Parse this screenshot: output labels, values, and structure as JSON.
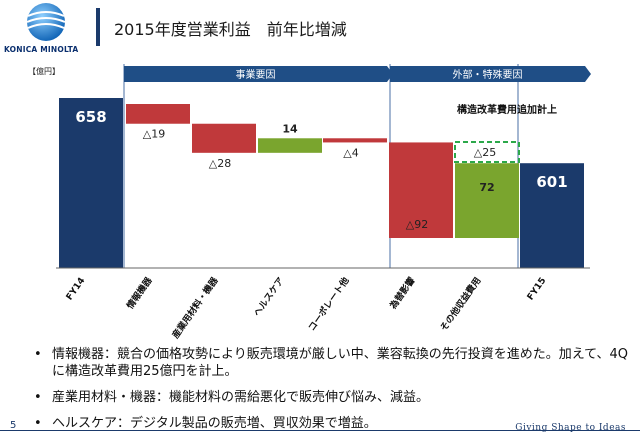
{
  "brand": {
    "name": "KONICA MINOLTA",
    "tagline": "Giving Shape to Ideas"
  },
  "header": {
    "title": "2015年度営業利益　前年比増減"
  },
  "footer": {
    "page_number": "5"
  },
  "colors": {
    "navy": "#1b3a6b",
    "red": "#c0393b",
    "green": "#7aa52e",
    "band": "#1f4e86",
    "dashed": "#2ca84a"
  },
  "chart_data": {
    "type": "bar",
    "unit": "【億円】",
    "categories": [
      "FY14",
      "情報機器",
      "産業用材料・機器",
      "ヘルスケア",
      "コーポレート他",
      "為替影響",
      "その他収益費用",
      "FY15"
    ],
    "bars": [
      {
        "kind": "total",
        "start": 0,
        "end": 658,
        "label": "658",
        "color": "navy"
      },
      {
        "kind": "decrease",
        "start": 658,
        "end": 639,
        "label": "△19",
        "color": "red"
      },
      {
        "kind": "decrease",
        "start": 639,
        "end": 611,
        "label": "△28",
        "color": "red"
      },
      {
        "kind": "increase",
        "start": 611,
        "end": 625,
        "label": "14",
        "color": "green"
      },
      {
        "kind": "decrease",
        "start": 625,
        "end": 621,
        "label": "△4",
        "color": "red"
      },
      {
        "kind": "decrease",
        "start": 621,
        "end": 529,
        "label": "△92",
        "color": "red"
      },
      {
        "kind": "increase",
        "start": 529,
        "end": 601,
        "label": "72",
        "color": "green"
      },
      {
        "kind": "total",
        "start": 0,
        "end": 601,
        "label": "601",
        "color": "navy"
      }
    ],
    "group_headers": [
      {
        "label": "事業要因",
        "from": 1,
        "to": 4
      },
      {
        "label": "外部・特殊要因",
        "from": 5,
        "to": 7
      }
    ],
    "annotation": {
      "title": "構造改革費用追加計上",
      "value_label": "△25",
      "category_index": 6
    }
  },
  "bullets": [
    "情報機器：競合の価格攻勢により販売環境が厳しい中、業容転換の先行投資を進めた。加えて、4Qに構造改革費用25億円を計上。",
    "産業用材料・機器：機能材料の需給悪化で販売伸び悩み、減益。",
    "ヘルスケア：デジタル製品の販売増、買収効果で増益。"
  ]
}
